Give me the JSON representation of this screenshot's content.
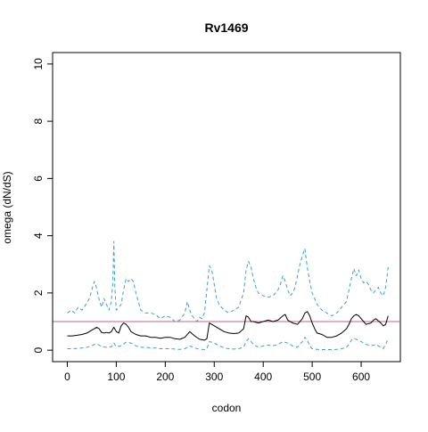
{
  "chart_data": {
    "type": "line",
    "title": "Rv1469",
    "xlabel": "codon",
    "ylabel": "omega (dN/dS)",
    "xlim": [
      -30,
      680
    ],
    "ylim": [
      -0.4,
      10.4
    ],
    "x_ticks": [
      0,
      100,
      200,
      300,
      400,
      500,
      600
    ],
    "y_ticks": [
      0,
      2,
      4,
      6,
      8,
      10
    ],
    "reference_line": {
      "y": 1,
      "color": "#c8608c"
    },
    "grid": false,
    "legend": "none",
    "series": [
      {
        "role": "upper",
        "style": "dashed",
        "color": "#3a9ee0",
        "x": [
          0,
          8,
          15,
          22,
          30,
          38,
          45,
          50,
          55,
          58,
          62,
          66,
          70,
          75,
          80,
          85,
          90,
          93,
          95,
          97,
          100,
          105,
          110,
          115,
          120,
          125,
          130,
          135,
          140,
          145,
          150,
          155,
          160,
          170,
          180,
          190,
          200,
          210,
          220,
          230,
          240,
          245,
          250,
          255,
          260,
          265,
          270,
          275,
          280,
          285,
          290,
          295,
          300,
          305,
          310,
          315,
          320,
          330,
          340,
          350,
          360,
          365,
          370,
          375,
          380,
          385,
          390,
          400,
          410,
          420,
          430,
          435,
          440,
          445,
          450,
          455,
          460,
          465,
          470,
          475,
          480,
          485,
          490,
          495,
          500,
          505,
          510,
          520,
          530,
          540,
          550,
          560,
          570,
          575,
          580,
          585,
          590,
          595,
          600,
          605,
          610,
          615,
          620,
          625,
          630,
          635,
          640,
          645,
          650,
          655
        ],
        "values": [
          1.3,
          1.4,
          1.3,
          1.5,
          1.4,
          1.6,
          1.8,
          2.1,
          2.4,
          2.3,
          2.0,
          1.7,
          1.5,
          1.8,
          1.6,
          1.4,
          1.7,
          2.4,
          3.8,
          2.2,
          1.4,
          1.5,
          1.6,
          2.1,
          2.5,
          2.4,
          2.5,
          2.4,
          2.0,
          1.7,
          1.4,
          1.35,
          1.3,
          1.3,
          1.25,
          1.1,
          1.2,
          1.15,
          1.0,
          1.05,
          1.3,
          1.7,
          1.4,
          1.2,
          1.1,
          1.0,
          1.15,
          1.1,
          1.3,
          2.1,
          2.95,
          2.8,
          2.3,
          1.8,
          1.6,
          1.5,
          1.4,
          1.3,
          1.4,
          1.5,
          2.0,
          2.8,
          3.1,
          2.9,
          2.5,
          2.2,
          2.0,
          1.9,
          1.85,
          1.9,
          2.1,
          2.3,
          2.6,
          2.4,
          2.1,
          1.9,
          2.0,
          2.2,
          2.6,
          3.0,
          3.3,
          3.55,
          2.9,
          2.4,
          2.0,
          1.8,
          1.6,
          1.4,
          1.3,
          1.2,
          1.3,
          1.5,
          1.7,
          2.1,
          2.5,
          2.85,
          2.6,
          2.8,
          2.5,
          2.35,
          2.4,
          2.3,
          2.1,
          2.0,
          2.1,
          2.2,
          2.0,
          1.9,
          2.2,
          2.9
        ]
      },
      {
        "role": "mean",
        "style": "solid",
        "color": "#000000",
        "x": [
          0,
          10,
          20,
          30,
          40,
          50,
          55,
          60,
          65,
          70,
          75,
          80,
          85,
          90,
          95,
          100,
          105,
          110,
          115,
          120,
          125,
          130,
          140,
          150,
          160,
          170,
          180,
          190,
          200,
          210,
          220,
          230,
          240,
          250,
          260,
          270,
          280,
          285,
          290,
          295,
          300,
          310,
          320,
          330,
          340,
          350,
          360,
          365,
          370,
          375,
          380,
          390,
          400,
          410,
          420,
          430,
          440,
          445,
          450,
          460,
          470,
          480,
          485,
          490,
          495,
          500,
          505,
          510,
          520,
          530,
          540,
          550,
          560,
          570,
          575,
          580,
          585,
          590,
          595,
          600,
          605,
          610,
          620,
          625,
          630,
          640,
          645,
          650,
          655
        ],
        "values": [
          0.5,
          0.5,
          0.52,
          0.55,
          0.6,
          0.7,
          0.75,
          0.8,
          0.75,
          0.62,
          0.6,
          0.62,
          0.6,
          0.65,
          0.8,
          0.65,
          0.6,
          0.85,
          0.95,
          0.9,
          0.8,
          0.65,
          0.55,
          0.5,
          0.5,
          0.45,
          0.45,
          0.42,
          0.45,
          0.45,
          0.4,
          0.38,
          0.45,
          0.65,
          0.5,
          0.38,
          0.35,
          0.4,
          0.95,
          0.9,
          0.85,
          0.75,
          0.65,
          0.6,
          0.58,
          0.6,
          0.75,
          1.2,
          1.15,
          1.0,
          1.0,
          0.95,
          1.0,
          1.05,
          1.0,
          1.05,
          1.2,
          1.25,
          1.05,
          0.95,
          0.9,
          1.1,
          1.3,
          1.35,
          1.2,
          0.95,
          0.75,
          0.6,
          0.55,
          0.45,
          0.45,
          0.5,
          0.6,
          0.75,
          0.9,
          1.1,
          1.2,
          1.25,
          1.2,
          1.1,
          1.0,
          0.9,
          0.95,
          1.05,
          1.1,
          0.95,
          0.85,
          0.9,
          1.2
        ]
      },
      {
        "role": "lower",
        "style": "dashed",
        "color": "#3a9ee0",
        "x": [
          0,
          10,
          20,
          30,
          40,
          50,
          55,
          60,
          65,
          70,
          80,
          90,
          95,
          100,
          110,
          120,
          130,
          140,
          150,
          160,
          170,
          180,
          190,
          200,
          210,
          220,
          230,
          240,
          250,
          260,
          270,
          280,
          285,
          290,
          295,
          300,
          310,
          320,
          330,
          340,
          350,
          360,
          365,
          370,
          375,
          380,
          390,
          400,
          410,
          420,
          430,
          440,
          450,
          460,
          470,
          480,
          485,
          490,
          495,
          500,
          510,
          520,
          530,
          540,
          550,
          560,
          570,
          575,
          580,
          585,
          590,
          600,
          610,
          620,
          630,
          640,
          645,
          650,
          655
        ],
        "values": [
          0.05,
          0.05,
          0.06,
          0.08,
          0.1,
          0.15,
          0.2,
          0.22,
          0.18,
          0.12,
          0.1,
          0.12,
          0.25,
          0.12,
          0.15,
          0.28,
          0.25,
          0.15,
          0.1,
          0.1,
          0.08,
          0.08,
          0.05,
          0.05,
          0.05,
          0.04,
          0.03,
          0.05,
          0.15,
          0.08,
          0.03,
          0.02,
          0.05,
          0.3,
          0.28,
          0.25,
          0.15,
          0.08,
          0.05,
          0.04,
          0.05,
          0.1,
          0.3,
          0.4,
          0.3,
          0.2,
          0.1,
          0.15,
          0.18,
          0.15,
          0.2,
          0.3,
          0.25,
          0.15,
          0.1,
          0.3,
          0.45,
          0.35,
          0.15,
          0.05,
          0.03,
          0.02,
          0.02,
          0.02,
          0.03,
          0.05,
          0.1,
          0.2,
          0.35,
          0.42,
          0.38,
          0.3,
          0.2,
          0.15,
          0.2,
          0.1,
          0.05,
          0.2,
          0.4
        ]
      }
    ]
  }
}
